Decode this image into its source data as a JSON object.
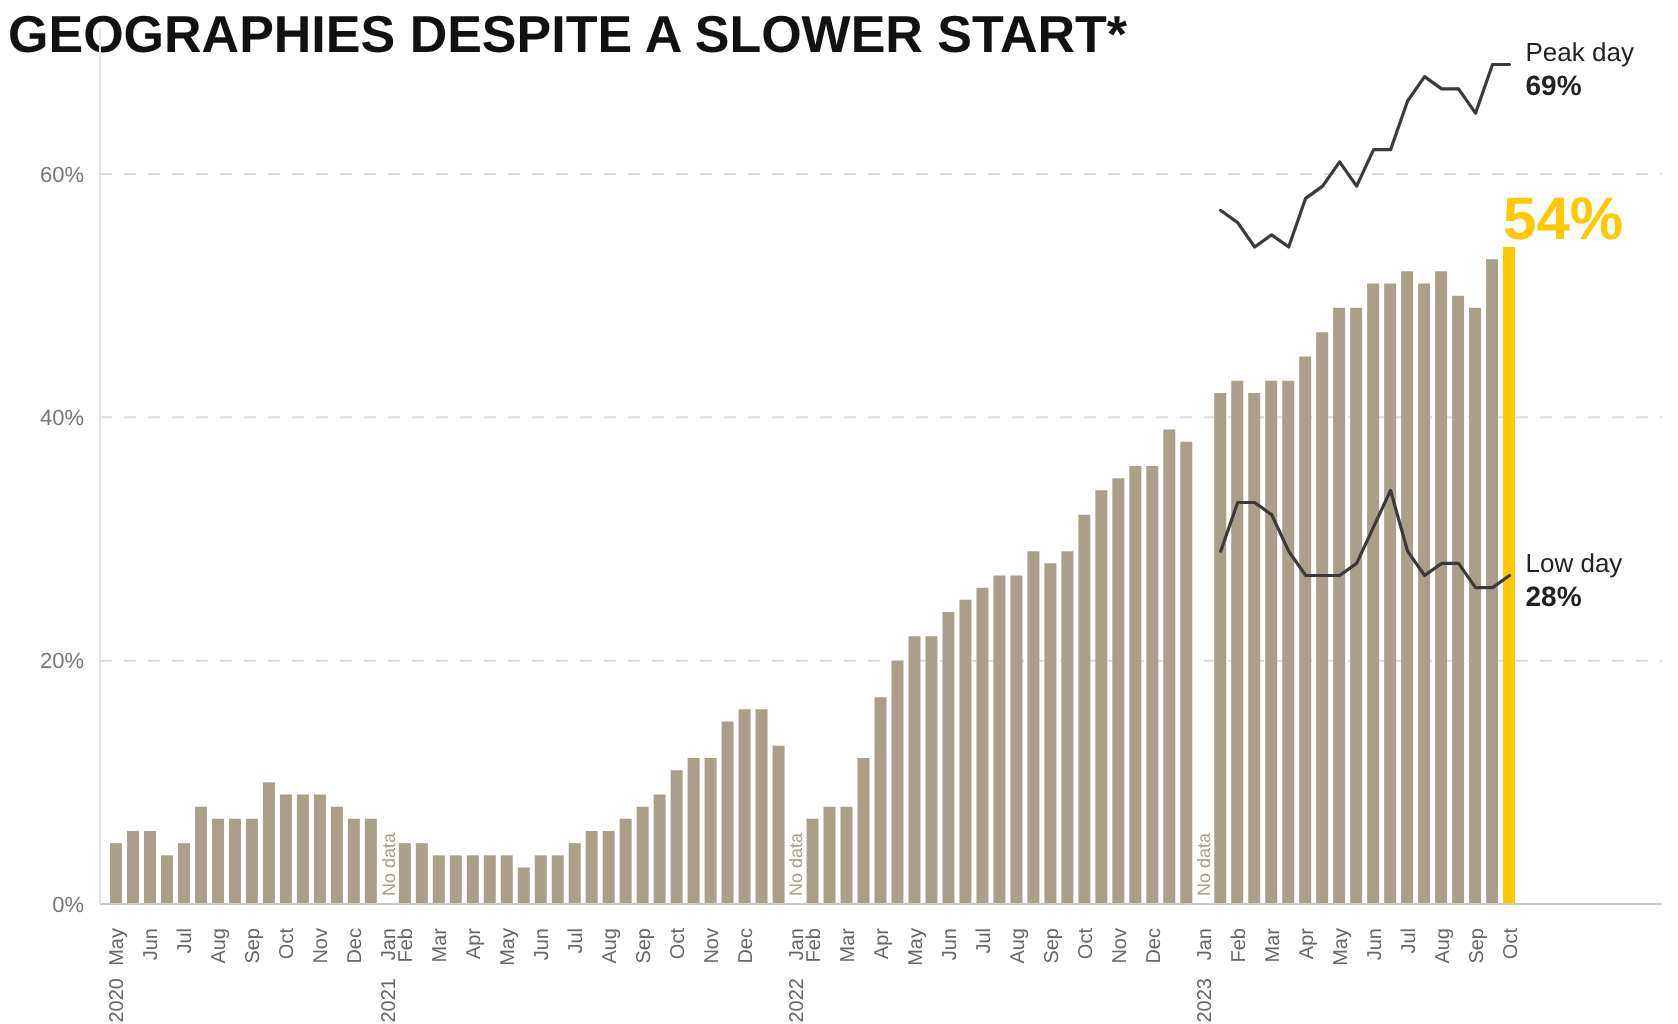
{
  "chart_data": {
    "type": "bar",
    "title": "GEOGRAPHIES DESPITE A SLOWER START*",
    "categories": [
      "May 2020",
      null,
      "Jun",
      null,
      "Jul",
      null,
      "Aug",
      null,
      "Sep",
      null,
      "Oct",
      null,
      "Nov",
      null,
      "Dec",
      null,
      "Jan 2021",
      "Feb",
      null,
      "Mar",
      null,
      "Apr",
      null,
      "May",
      null,
      "Jun",
      null,
      "Jul",
      null,
      "Aug",
      null,
      "Sep",
      null,
      "Oct",
      null,
      "Nov",
      null,
      "Dec",
      null,
      null,
      "Jan 2022",
      "Feb",
      null,
      "Mar",
      null,
      "Apr",
      null,
      "May",
      null,
      "Jun",
      null,
      "Jul",
      null,
      "Aug",
      null,
      "Sep",
      null,
      "Oct",
      null,
      "Nov",
      null,
      "Dec",
      null,
      null,
      "Jan 2023",
      null,
      "Feb",
      null,
      "Mar",
      null,
      "Apr",
      null,
      "May",
      null,
      "Jun",
      null,
      "Jul",
      null,
      "Aug",
      null,
      "Sep",
      null,
      "Oct"
    ],
    "series": [
      {
        "colors": [
          "#aa9f8b",
          "#aa9f8b",
          "#aa9f8b",
          "#aa9f8b",
          "#aa9f8b",
          "#aa9f8b",
          "#aa9f8b",
          "#aa9f8b",
          "#aa9f8b",
          "#aa9f8b",
          "#aa9f8b",
          "#aa9f8b",
          "#aa9f8b",
          "#aa9f8b",
          "#aa9f8b",
          "#aa9f8b",
          "#aa9f8b",
          "#aa9f8b",
          "#aa9f8b",
          "#aa9f8b",
          "#aa9f8b",
          "#aa9f8b",
          "#aa9f8b",
          "#aa9f8b",
          "#aa9f8b",
          "#aa9f8b",
          "#aa9f8b",
          "#aa9f8b",
          "#aa9f8b",
          "#aa9f8b",
          "#aa9f8b",
          "#aa9f8b",
          "#aa9f8b",
          "#aa9f8b",
          "#aa9f8b",
          "#aa9f8b",
          "#aa9f8b",
          "#aa9f8b",
          "#aa9f8b",
          "#aa9f8b",
          "#aa9f8b",
          "#aa9f8b",
          "#aa9f8b",
          "#aa9f8b",
          "#aa9f8b",
          "#aa9f8b",
          "#aa9f8b",
          "#aa9f8b",
          "#aa9f8b",
          "#aa9f8b",
          "#aa9f8b",
          "#aa9f8b",
          "#aa9f8b",
          "#aa9f8b",
          "#aa9f8b",
          "#aa9f8b",
          "#aa9f8b",
          "#aa9f8b",
          "#aa9f8b",
          "#aa9f8b",
          "#aa9f8b",
          "#aa9f8b",
          "#aa9f8b",
          "#aa9f8b",
          "#aa9f8b",
          "#aa9f8b",
          "#aa9f8b",
          "#aa9f8b",
          "#aa9f8b",
          "#aa9f8b",
          "#aa9f8b",
          "#aa9f8b",
          "#aa9f8b",
          "#aa9f8b",
          "#aa9f8b",
          "#aa9f8b",
          "#aa9f8b",
          "#aa9f8b",
          "#aa9f8b",
          "#aa9f8b",
          "#aa9f8b",
          "#aa9f8b",
          "#ffc800"
        ],
        "values": [
          5,
          6,
          6,
          4,
          5,
          8,
          7,
          7,
          7,
          10,
          9,
          9,
          9,
          8,
          7,
          7,
          null,
          5,
          5,
          4,
          4,
          4,
          4,
          4,
          3,
          4,
          4,
          5,
          6,
          6,
          7,
          8,
          9,
          11,
          12,
          12,
          15,
          16,
          16,
          13,
          null,
          7,
          8,
          8,
          12,
          17,
          20,
          22,
          22,
          24,
          25,
          26,
          27,
          27,
          29,
          28,
          29,
          32,
          34,
          35,
          36,
          36,
          39,
          38,
          null,
          42,
          43,
          42,
          43,
          43,
          45,
          47,
          49,
          49,
          51,
          51,
          52,
          51,
          52,
          50,
          49,
          53,
          54
        ],
        "value_labels": [
          null,
          null,
          null,
          null,
          null,
          null,
          null,
          null,
          null,
          null,
          null,
          null,
          null,
          null,
          null,
          null,
          null,
          null,
          null,
          null,
          null,
          null,
          null,
          null,
          null,
          null,
          null,
          null,
          null,
          null,
          null,
          null,
          null,
          null,
          null,
          null,
          null,
          null,
          null,
          null,
          null,
          null,
          null,
          null,
          null,
          null,
          null,
          null,
          null,
          null,
          null,
          null,
          null,
          null,
          null,
          null,
          null,
          null,
          null,
          null,
          null,
          null,
          null,
          null,
          null,
          null,
          null,
          null,
          null,
          null,
          null,
          null,
          null,
          null,
          null,
          null,
          null,
          null,
          null,
          null,
          null,
          null,
          "54%"
        ]
      },
      {
        "type": "line",
        "name": "Peak day",
        "color": "#3a3a3a",
        "values": [
          null,
          null,
          null,
          null,
          null,
          null,
          null,
          null,
          null,
          null,
          null,
          null,
          null,
          null,
          null,
          null,
          null,
          null,
          null,
          null,
          null,
          null,
          null,
          null,
          null,
          null,
          null,
          null,
          null,
          null,
          null,
          null,
          null,
          null,
          null,
          null,
          null,
          null,
          null,
          null,
          null,
          null,
          null,
          null,
          null,
          null,
          null,
          null,
          null,
          null,
          null,
          null,
          null,
          null,
          null,
          null,
          null,
          null,
          null,
          null,
          null,
          null,
          null,
          null,
          null,
          57,
          56,
          54,
          55,
          54,
          58,
          59,
          61,
          59,
          62,
          62,
          66,
          68,
          67,
          67,
          65,
          69,
          69
        ]
      },
      {
        "type": "line",
        "name": "Low day",
        "color": "#3a3a3a",
        "values": [
          null,
          null,
          null,
          null,
          null,
          null,
          null,
          null,
          null,
          null,
          null,
          null,
          null,
          null,
          null,
          null,
          null,
          null,
          null,
          null,
          null,
          null,
          null,
          null,
          null,
          null,
          null,
          null,
          null,
          null,
          null,
          null,
          null,
          null,
          null,
          null,
          null,
          null,
          null,
          null,
          null,
          null,
          null,
          null,
          null,
          null,
          null,
          null,
          null,
          null,
          null,
          null,
          null,
          null,
          null,
          null,
          null,
          null,
          null,
          null,
          null,
          null,
          null,
          null,
          null,
          29,
          33,
          33,
          32,
          29,
          27,
          27,
          27,
          28,
          31,
          34,
          29,
          27,
          28,
          28,
          26,
          26,
          27
        ]
      }
    ],
    "annotations": [
      {
        "text": "No data",
        "x": "Jan 2021"
      },
      {
        "text": "No data",
        "x": "Jan 2022"
      },
      {
        "text": "No data",
        "x": "Jan 2023"
      },
      "69%",
      "28%"
    ],
    "ylim": [
      0,
      72
    ],
    "yticks": [
      {
        "value": 0,
        "label": "0%"
      },
      {
        "value": 20,
        "label": "20%"
      },
      {
        "value": 40,
        "label": "40%"
      },
      {
        "value": 60,
        "label": "60%"
      }
    ],
    "grid": "y"
  }
}
